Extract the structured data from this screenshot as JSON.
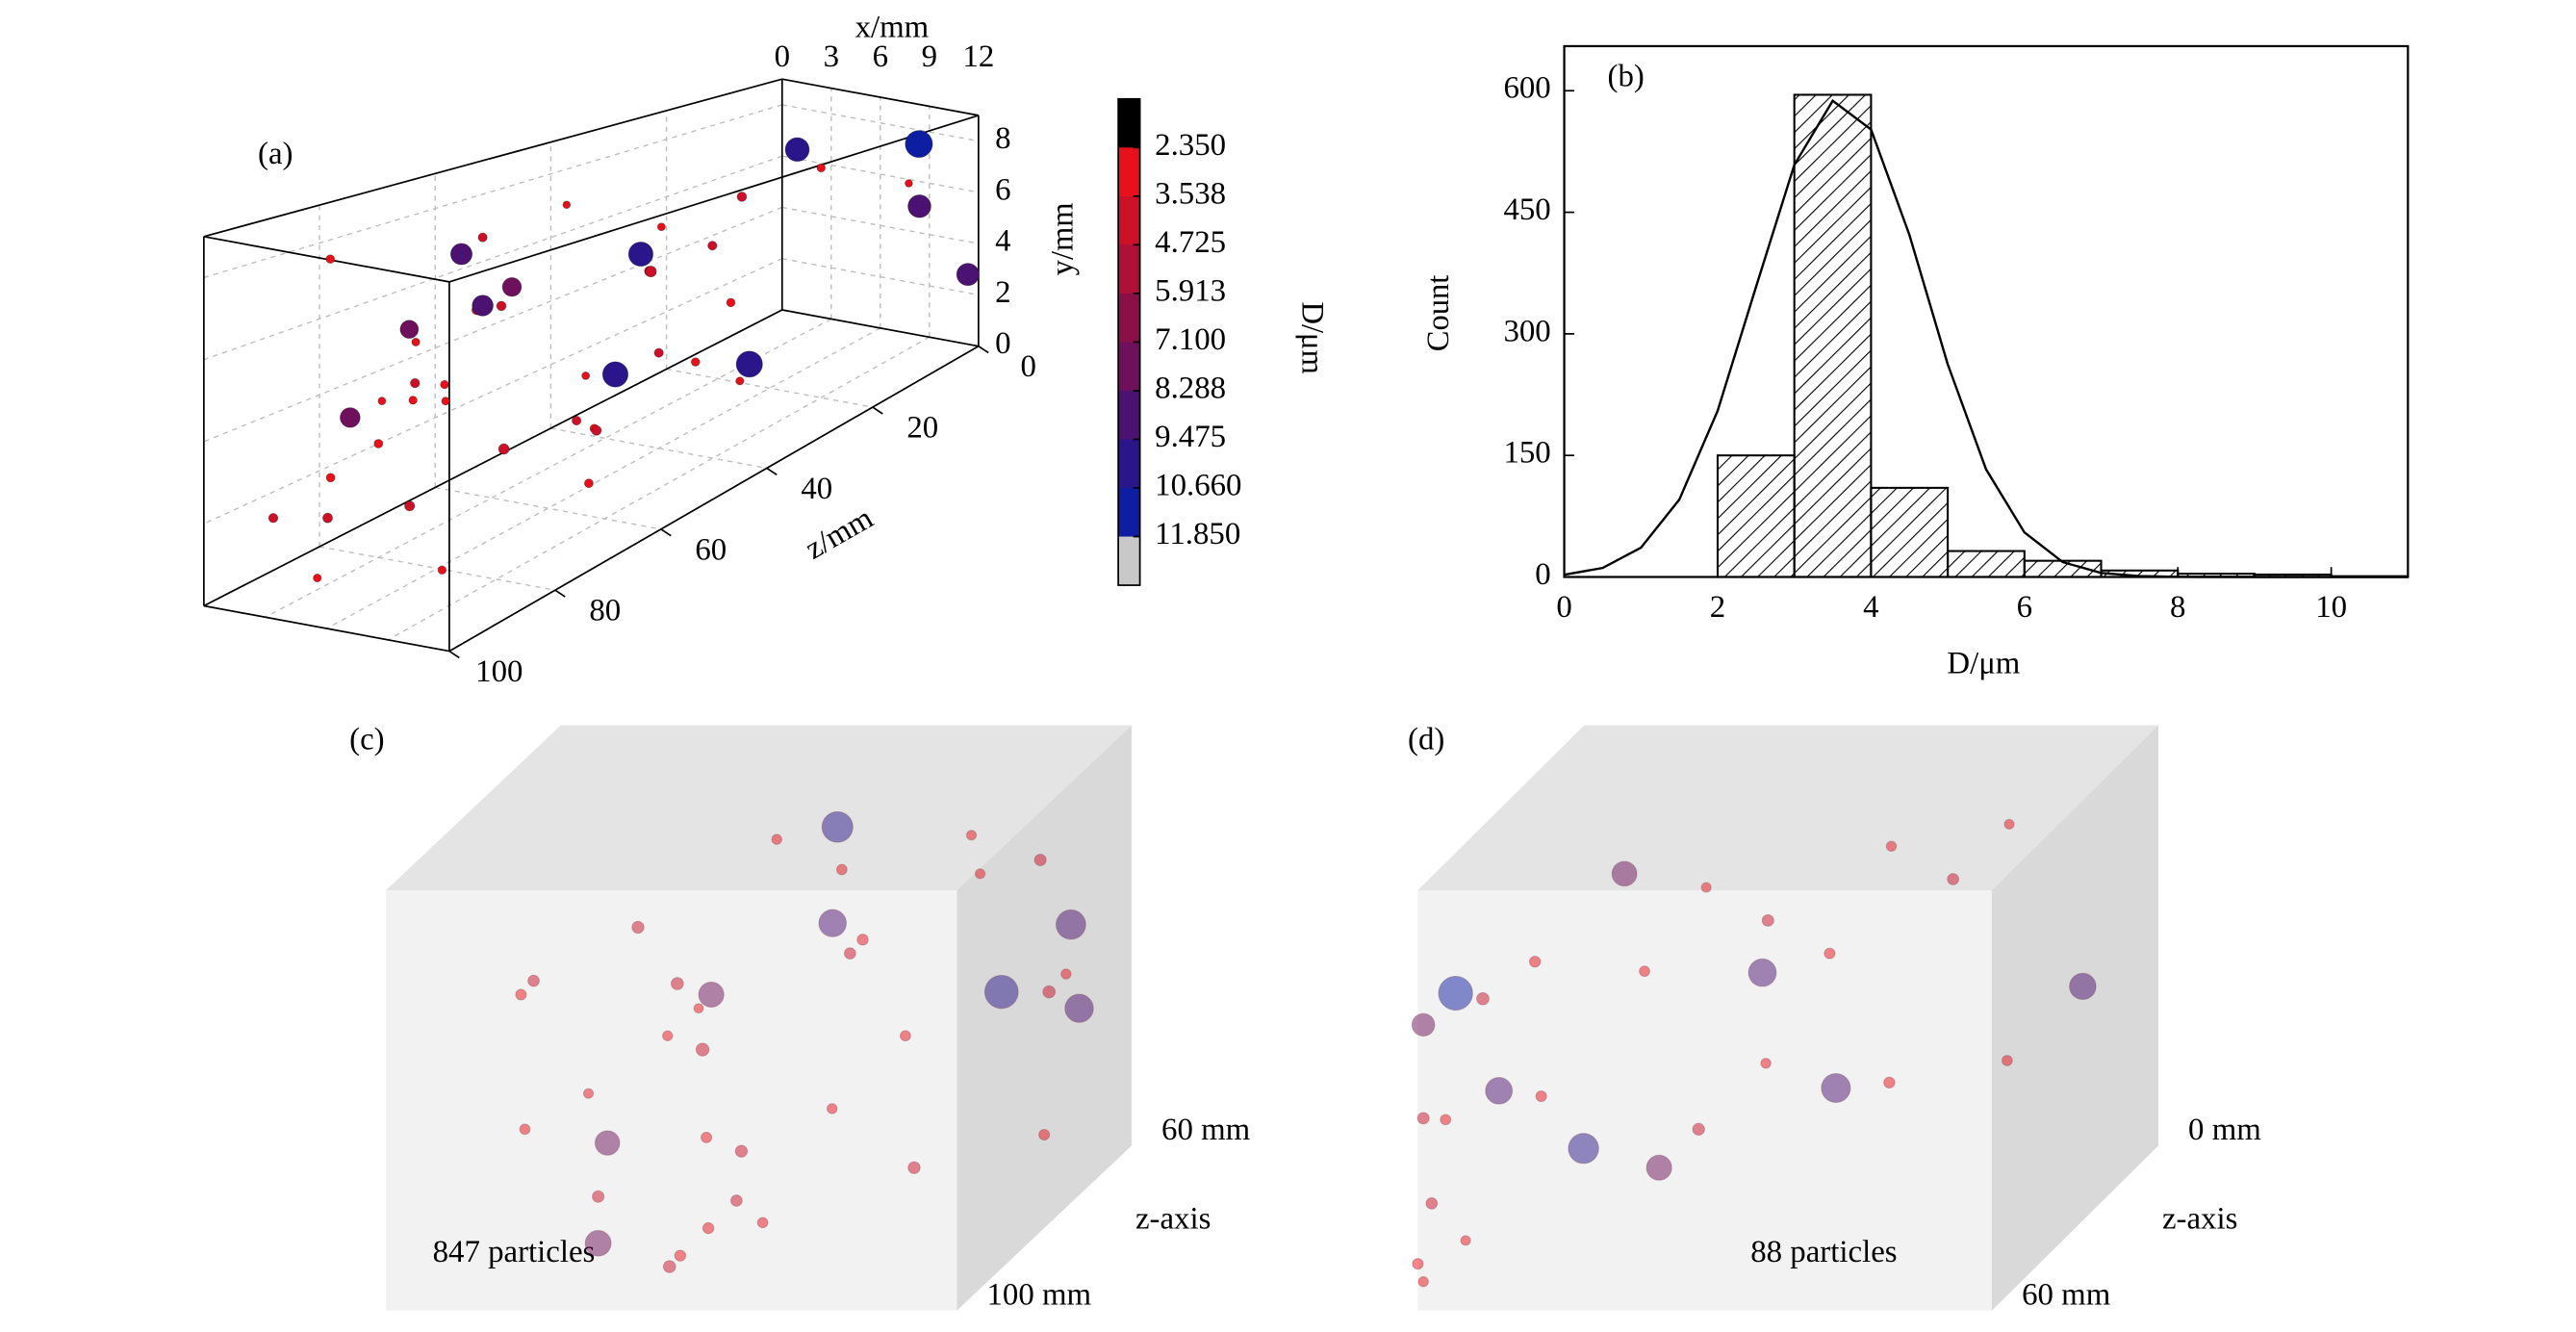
{
  "chart_data": [
    {
      "type": "scatter3d",
      "panel_label": "(a)",
      "xlabel": "x/mm",
      "ylabel": "y/mm",
      "zlabel": "z/mm",
      "xlim": [
        0,
        12
      ],
      "ylim": [
        0,
        9
      ],
      "zlim": [
        0,
        100
      ],
      "xticks": [
        0,
        3,
        6,
        9,
        12
      ],
      "yticks": [
        0,
        2,
        4,
        6,
        8
      ],
      "zticks": [
        0,
        20,
        40,
        60,
        80,
        100
      ],
      "grid": true,
      "colorbar": {
        "label": "D/μm",
        "clim": [
          1.1625,
          13.0375
        ],
        "ticks": [
          {
            "value": 2.35,
            "label": "2.350"
          },
          {
            "value": 3.538,
            "label": "3.538"
          },
          {
            "value": 4.725,
            "label": "4.725"
          },
          {
            "value": 5.913,
            "label": "5.913"
          },
          {
            "value": 7.1,
            "label": "7.100"
          },
          {
            "value": 8.288,
            "label": "8.288"
          },
          {
            "value": 9.475,
            "label": "9.475"
          },
          {
            "value": 10.66,
            "label": "10.660"
          },
          {
            "value": 11.85,
            "label": "11.850"
          }
        ],
        "colors": [
          "#000000",
          "#e8101a",
          "#cc1028",
          "#ae1038",
          "#8c1048",
          "#6e105c",
          "#4c1272",
          "#2a168a",
          "#0e1ea2",
          "#c8c8c8"
        ]
      },
      "points": [
        [
          2,
          5,
          70,
          3.2
        ],
        [
          5,
          6,
          65,
          3.8
        ],
        [
          8,
          4,
          60,
          3.1
        ],
        [
          3,
          3,
          80,
          3.5
        ],
        [
          6,
          2,
          85,
          4.0
        ],
        [
          9,
          1,
          90,
          3.3
        ],
        [
          1,
          7,
          55,
          3.6
        ],
        [
          4,
          8,
          50,
          3.0
        ],
        [
          7,
          6,
          45,
          3.9
        ],
        [
          10,
          5,
          40,
          3.4
        ],
        [
          2,
          2,
          95,
          3.7
        ],
        [
          5,
          1,
          98,
          3.2
        ],
        [
          8,
          3,
          75,
          4.2
        ],
        [
          11,
          2,
          70,
          3.5
        ],
        [
          3,
          6,
          30,
          3.1
        ],
        [
          6,
          7,
          25,
          3.8
        ],
        [
          9,
          8,
          20,
          3.3
        ],
        [
          1,
          4,
          15,
          3.6
        ],
        [
          11,
          7,
          10,
          3.0
        ],
        [
          4,
          5,
          35,
          4.4
        ],
        [
          7,
          2,
          55,
          3.5
        ],
        [
          10,
          3,
          65,
          3.9
        ],
        [
          2,
          8,
          85,
          3.4
        ],
        [
          6,
          5,
          90,
          3.1
        ],
        [
          9,
          6,
          95,
          3.7
        ],
        [
          0.5,
          3,
          60,
          3.3
        ],
        [
          3,
          1,
          45,
          3.6
        ],
        [
          5,
          4,
          75,
          3.2
        ],
        [
          8,
          7,
          80,
          3.8
        ],
        [
          11,
          4,
          50,
          3.4
        ],
        [
          4,
          3,
          92,
          3.5
        ],
        [
          7,
          5,
          88,
          3.3
        ],
        [
          1,
          1,
          82,
          3.9
        ],
        [
          9,
          2,
          35,
          3.2
        ],
        [
          6,
          3,
          40,
          3.6
        ],
        [
          2,
          7,
          62,
          8.6
        ],
        [
          5,
          6,
          40,
          9.8
        ],
        [
          10,
          8,
          5,
          10.9
        ],
        [
          11,
          6,
          8,
          9.2
        ],
        [
          3,
          4,
          85,
          8.0
        ],
        [
          8,
          2,
          30,
          10.5
        ],
        [
          6,
          8,
          15,
          9.6
        ],
        [
          1,
          5,
          55,
          8.4
        ],
        [
          9,
          4,
          58,
          10.2
        ],
        [
          12,
          3,
          2,
          9.0
        ],
        [
          7,
          7,
          70,
          7.6
        ],
        [
          4,
          6,
          78,
          7.3
        ]
      ]
    },
    {
      "type": "histogram",
      "panel_label": "(b)",
      "xlabel": "D/μm",
      "ylabel": "Count",
      "bins": [
        0,
        1,
        2,
        3,
        4,
        5,
        6,
        7,
        8,
        9,
        10,
        11
      ],
      "counts": [
        0,
        0,
        150,
        595,
        110,
        32,
        20,
        8,
        4,
        3,
        1
      ],
      "curve": {
        "x": [
          0,
          0.5,
          1,
          1.5,
          2,
          2.5,
          3,
          3.5,
          4,
          4.5,
          5,
          5.5,
          6,
          6.5,
          7,
          7.5,
          8,
          9,
          10,
          11
        ],
        "y": [
          2.8,
          11.1,
          36.1,
          95.4,
          205,
          357.8,
          508.5,
          587.6,
          552.2,
          422.2,
          262.5,
          132.8,
          55,
          18.3,
          5,
          1.1,
          0.2,
          0,
          0,
          0
        ]
      },
      "xlim": [
        0,
        11
      ],
      "ylim": [
        0,
        655
      ],
      "xticks": [
        0,
        2,
        4,
        6,
        8,
        10
      ],
      "yticks": [
        0,
        150,
        300,
        450,
        600
      ]
    },
    {
      "type": "volume",
      "panel_label": "(c)",
      "annotation": "847 particles",
      "depth_label": "z-axis",
      "xlim": [
        0,
        12
      ],
      "ylim": [
        0,
        9
      ],
      "zlim": [
        60,
        100
      ],
      "zticks": [
        {
          "value": 60,
          "label": "60 mm"
        },
        {
          "value": 100,
          "label": "100 mm"
        }
      ],
      "points": [
        [
          1,
          5,
          80,
          3.4
        ],
        [
          3,
          6,
          75,
          3.8
        ],
        [
          5,
          7,
          65,
          3.2
        ],
        [
          7,
          5,
          70,
          3.6
        ],
        [
          9,
          6,
          62,
          3.1
        ],
        [
          11,
          4,
          68,
          3.9
        ],
        [
          2,
          3,
          90,
          3.3
        ],
        [
          4,
          2,
          95,
          3.7
        ],
        [
          6,
          1,
          98,
          3.5
        ],
        [
          8,
          3,
          85,
          3.2
        ],
        [
          10,
          2,
          88,
          3.8
        ],
        [
          5,
          4,
          82,
          4.1
        ],
        [
          6,
          3,
          92,
          3.4
        ],
        [
          7,
          2,
          96,
          3.6
        ],
        [
          4,
          4,
          72,
          3.0
        ],
        [
          8,
          6,
          78,
          3.5
        ],
        [
          3,
          4,
          66,
          3.9
        ],
        [
          6,
          6,
          61,
          3.3
        ],
        [
          9,
          7,
          64,
          3.1
        ],
        [
          11,
          7,
          70,
          3.7
        ],
        [
          12,
          5,
          75,
          3.2
        ],
        [
          12,
          2,
          80,
          3.4
        ],
        [
          2,
          6,
          88,
          3.6
        ],
        [
          5,
          5,
          90,
          3.2
        ],
        [
          6,
          2,
          84,
          3.8
        ],
        [
          7,
          1,
          90,
          3.3
        ],
        [
          5.5,
          0.5,
          95,
          3.9
        ],
        [
          6.5,
          1.5,
          97,
          3.5
        ],
        [
          10,
          5,
          90,
          3.3
        ],
        [
          1.5,
          2,
          70,
          3.1
        ],
        [
          6,
          7,
          62,
          9.8
        ],
        [
          7,
          6,
          74,
          8.7
        ],
        [
          4,
          1,
          95,
          8.2
        ],
        [
          10,
          4,
          68,
          10.6
        ],
        [
          11,
          5,
          63,
          9.4
        ],
        [
          5,
          5,
          80,
          8.0
        ],
        [
          12,
          4,
          72,
          9.0
        ],
        [
          3,
          2,
          82,
          7.8
        ]
      ]
    },
    {
      "type": "volume",
      "panel_label": "(d)",
      "annotation": "88 particles",
      "depth_label": "z-axis",
      "xlim": [
        0,
        12
      ],
      "ylim": [
        0,
        9
      ],
      "zlim": [
        0,
        60
      ],
      "zticks": [
        {
          "value": 0,
          "label": "0 mm"
        },
        {
          "value": 60,
          "label": "60 mm"
        }
      ],
      "points": [
        [
          0,
          1,
          60,
          3.4
        ],
        [
          0,
          0.5,
          58,
          3.2
        ],
        [
          0,
          2,
          55,
          3.6
        ],
        [
          0,
          3.5,
          50,
          3.3
        ],
        [
          0.2,
          5.5,
          40,
          3.9
        ],
        [
          1,
          6,
          35,
          3.5
        ],
        [
          3,
          5.5,
          30,
          3.3
        ],
        [
          4,
          7,
          25,
          3.1
        ],
        [
          5,
          6,
          20,
          3.7
        ],
        [
          6,
          5,
          15,
          3.4
        ],
        [
          7,
          7,
          10,
          3.2
        ],
        [
          8,
          6,
          5,
          3.6
        ],
        [
          9,
          7,
          2,
          3.1
        ],
        [
          5,
          3,
          45,
          3.8
        ],
        [
          2,
          4,
          50,
          3.4
        ],
        [
          6,
          4,
          38,
          3.2
        ],
        [
          8,
          3,
          28,
          3.5
        ],
        [
          10,
          3,
          20,
          3.3
        ],
        [
          0,
          4,
          58,
          3.7
        ],
        [
          1,
          1.5,
          60,
          3.1
        ],
        [
          0.5,
          6.5,
          55,
          10.8
        ],
        [
          1,
          4,
          48,
          8.5
        ],
        [
          3,
          3,
          52,
          9.6
        ],
        [
          4,
          2,
          42,
          8.0
        ],
        [
          5,
          5,
          22,
          8.8
        ],
        [
          7,
          3,
          30,
          9.2
        ],
        [
          11,
          4,
          10,
          8.4
        ],
        [
          2,
          7,
          20,
          7.9
        ],
        [
          0,
          6,
          58,
          7.2
        ]
      ]
    }
  ]
}
